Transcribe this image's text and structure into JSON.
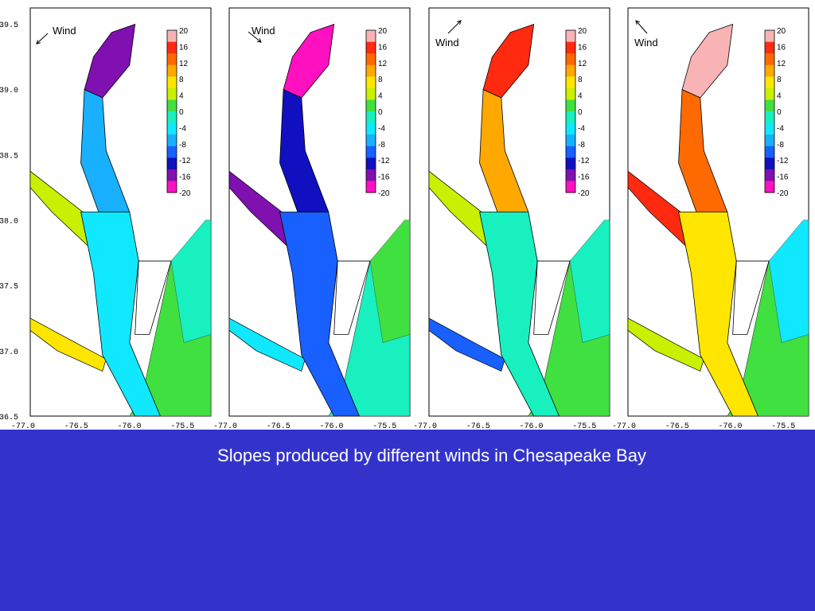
{
  "caption": "Slopes produced by different winds in Chesapeake Bay",
  "wind_label": "Wind",
  "y_tick_labels": [
    "39.5",
    "39.0",
    "38.5",
    "38.0",
    "37.5",
    "37.0",
    "36.5"
  ],
  "x_tick_labels": [
    "-77.0",
    "-76.5",
    "-76.0",
    "-75.5"
  ],
  "colorbar": {
    "labels": [
      "20",
      "16",
      "12",
      "8",
      "4",
      "0",
      "-4",
      "-8",
      "-12",
      "-16",
      "-20"
    ],
    "colors": [
      "#f8b4b4",
      "#ff2a10",
      "#ff6a00",
      "#ffa800",
      "#ffe600",
      "#c8f000",
      "#40e040",
      "#18f0c0",
      "#10e8ff",
      "#18b0ff",
      "#1860ff",
      "#1010c0",
      "#8010b0",
      "#ff10c0"
    ]
  },
  "panels": [
    {
      "id": "panel-1",
      "wind_direction": "southwest"
    },
    {
      "id": "panel-2",
      "wind_direction": "southeast"
    },
    {
      "id": "panel-3",
      "wind_direction": "northeast"
    },
    {
      "id": "panel-4",
      "wind_direction": "northwest"
    }
  ],
  "colors": {
    "background": "#3333cc",
    "caption": "#ffffff",
    "frame": "#000000"
  }
}
